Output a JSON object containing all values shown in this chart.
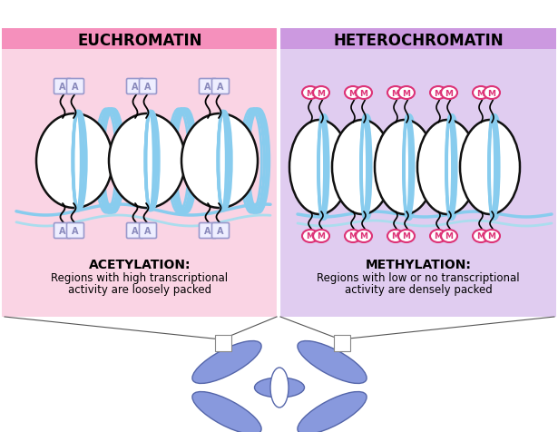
{
  "title_left": "EUCHROMATIN",
  "title_right": "HETEROCHROMATIN",
  "label_left_bold": "ACETYLATION:",
  "label_left_text": "Regions with high transcriptional\nactivity are loosely packed",
  "label_right_bold": "METHYLATION:",
  "label_right_text": "Regions with low or no transcriptional\nactivity are densely packed",
  "bg_left": "#fad4e4",
  "bg_right": "#e0ccf0",
  "header_left": "#f590bc",
  "header_right": "#cc99e0",
  "nucleosome_fill": "#ffffff",
  "nucleosome_edge": "#111111",
  "dna_color": "#88ccee",
  "dna_color2": "#aaddee",
  "tag_A_fill": "#eeeeff",
  "tag_A_edge": "#9999cc",
  "tag_A_text": "#8888bb",
  "tag_M_fill": "#ffffff",
  "tag_M_edge": "#dd3377",
  "tag_M_text": "#dd3377",
  "chromosome_fill": "#8899dd",
  "chromosome_edge": "#5566aa",
  "fig_bg": "#ffffff",
  "line_color": "#333333"
}
